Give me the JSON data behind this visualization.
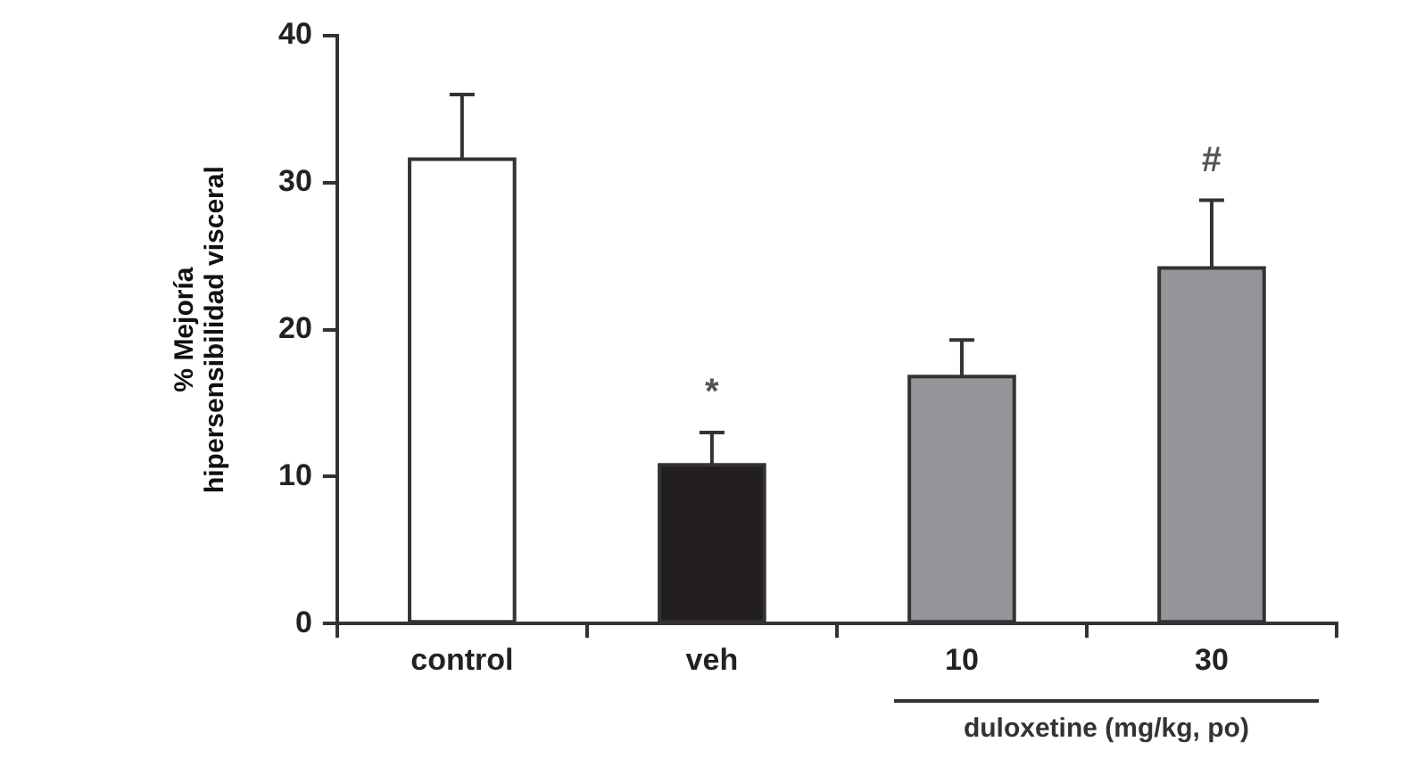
{
  "chart_data": {
    "type": "bar",
    "ylabel": "% Mejoría\nhipersensibilidad visceral",
    "categories": [
      "control",
      "veh",
      "10",
      "30"
    ],
    "values": [
      31.6,
      10.8,
      16.8,
      24.2
    ],
    "errors": [
      4.4,
      2.2,
      2.5,
      4.6
    ],
    "colors": [
      "#ffffff",
      "#231f20",
      "#939598",
      "#939598"
    ],
    "ylim": [
      0,
      40
    ],
    "yticks": [
      0,
      10,
      20,
      30,
      40
    ],
    "grid": false,
    "legend": false,
    "annotations": [
      {
        "text": "*",
        "x": "veh",
        "y": 13
      },
      {
        "text": "#",
        "x": "30",
        "y": 28.8
      },
      "duloxetine (mg/kg, po)"
    ]
  }
}
